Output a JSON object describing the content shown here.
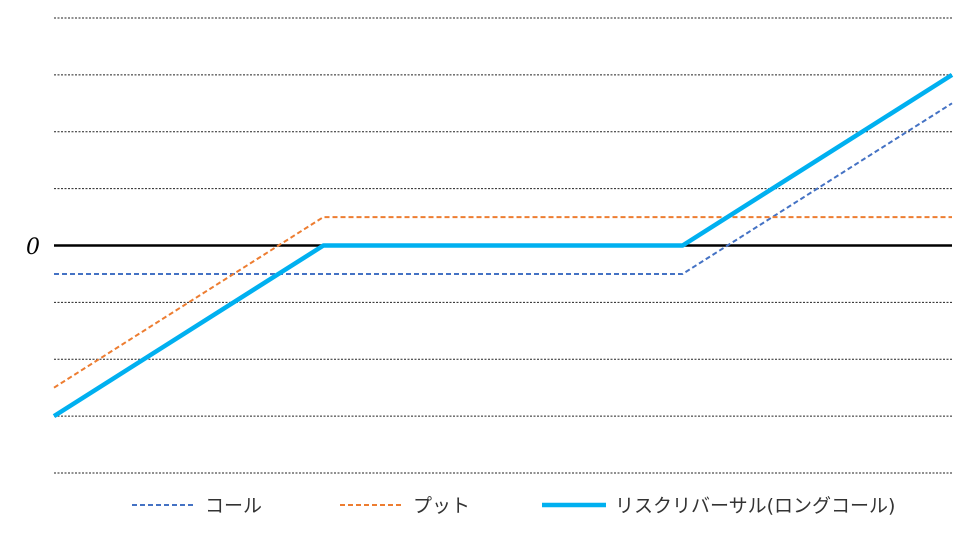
{
  "chart_data": {
    "type": "line",
    "title": "",
    "xlabel": "",
    "ylabel": "",
    "y_tick_labels": [
      "0"
    ],
    "xlim": [
      0,
      100
    ],
    "ylim": [
      -8,
      8
    ],
    "grid": true,
    "legend_position": "bottom",
    "series": [
      {
        "name": "コール",
        "style": "dashed",
        "color": "#4472C4",
        "x": [
          0,
          70,
          100
        ],
        "y": [
          -1,
          -1,
          5
        ]
      },
      {
        "name": "プット",
        "style": "dashed",
        "color": "#ED7D31",
        "x": [
          0,
          30,
          100
        ],
        "y": [
          -5,
          1,
          1
        ]
      },
      {
        "name": "リスクリバーサル(ロングコール)",
        "style": "solid",
        "color": "#00B0F0",
        "x": [
          0,
          30,
          70,
          100
        ],
        "y": [
          -6,
          0,
          0,
          6
        ]
      }
    ]
  }
}
